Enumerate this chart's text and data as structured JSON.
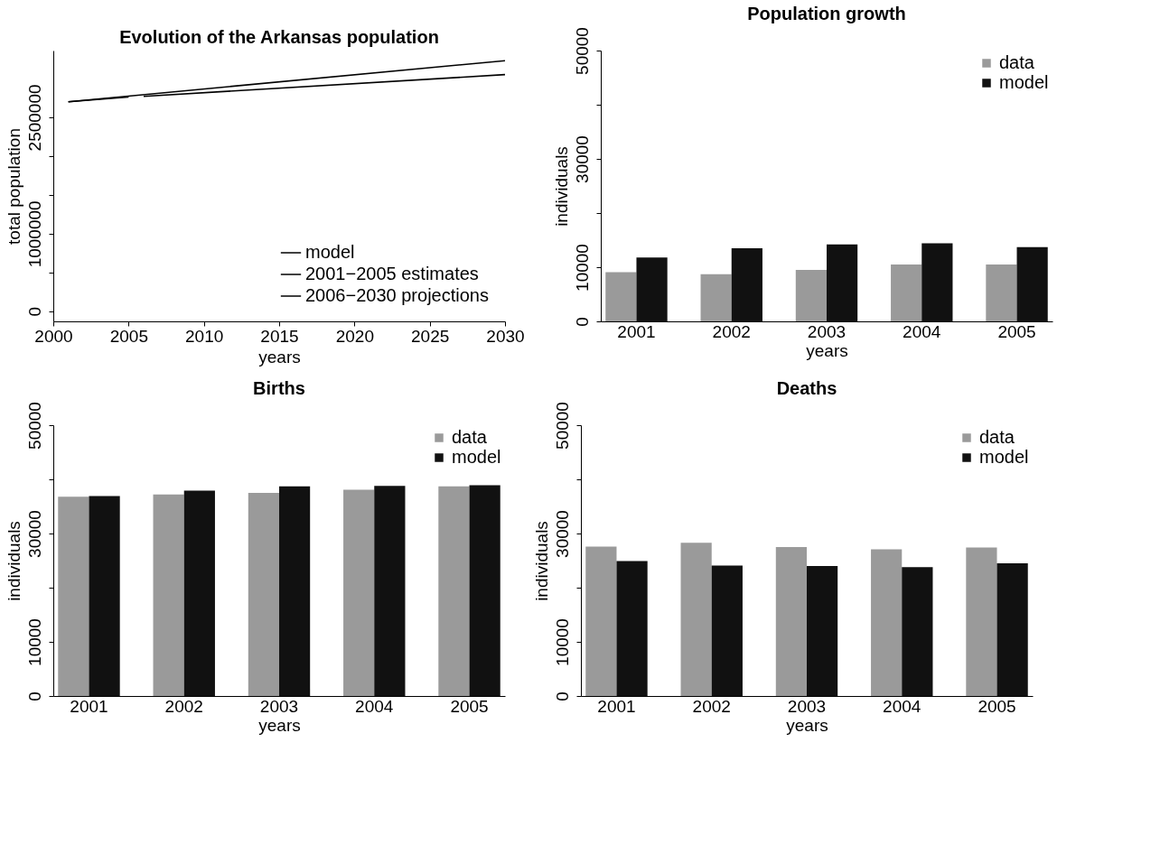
{
  "chart_data": [
    {
      "type": "line",
      "title": "Evolution of the Arkansas population",
      "xlabel": "years",
      "ylabel": "total population",
      "xlim": [
        2000,
        2030
      ],
      "xticks": [
        2000,
        2005,
        2010,
        2015,
        2020,
        2025,
        2030
      ],
      "ylim": [
        -130000,
        3360000
      ],
      "yticks": [
        0,
        {
          "value": 500000,
          "label": null
        },
        1000000,
        {
          "value": 1500000,
          "label": null
        },
        {
          "value": 2000000,
          "label": null
        },
        2500000
      ],
      "grid": false,
      "legend": "bottom right",
      "series": [
        {
          "name": "model",
          "color": "#000000",
          "x": [
            2001,
            2030
          ],
          "values": [
            2700000,
            3230000
          ]
        },
        {
          "name": "2001−2005 estimates",
          "color": "#000000",
          "x": [
            2001,
            2005
          ],
          "values": [
            2700000,
            2760000
          ]
        },
        {
          "name": "2006−2030 projections",
          "color": "#000000",
          "x": [
            2006,
            2030
          ],
          "values": [
            2770000,
            3050000
          ]
        }
      ]
    },
    {
      "type": "bar",
      "title": "Population growth",
      "xlabel": "years",
      "ylabel": "individuals",
      "categories": [
        "2001",
        "2002",
        "2003",
        "2004",
        "2005"
      ],
      "ylim": [
        0,
        50000
      ],
      "yticks": [
        0,
        10000,
        {
          "value": 20000,
          "label": null
        },
        30000,
        {
          "value": 40000,
          "label": null
        },
        50000
      ],
      "grid": false,
      "legend": "top right",
      "series": [
        {
          "name": "data",
          "color": "#9a9a9a",
          "values": [
            9100,
            8700,
            9500,
            10500,
            10500
          ]
        },
        {
          "name": "model",
          "color": "#111111",
          "values": [
            11800,
            13500,
            14200,
            14400,
            13700
          ]
        }
      ]
    },
    {
      "type": "bar",
      "title": "Births",
      "xlabel": "years",
      "ylabel": "individuals",
      "categories": [
        "2001",
        "2002",
        "2003",
        "2004",
        "2005"
      ],
      "ylim": [
        0,
        50000
      ],
      "yticks": [
        0,
        10000,
        {
          "value": 20000,
          "label": null
        },
        30000,
        {
          "value": 40000,
          "label": null
        },
        50000
      ],
      "grid": false,
      "legend": "top right",
      "series": [
        {
          "name": "data",
          "color": "#9a9a9a",
          "values": [
            36800,
            37200,
            37500,
            38100,
            38700
          ]
        },
        {
          "name": "model",
          "color": "#111111",
          "values": [
            36900,
            37900,
            38700,
            38800,
            38900
          ]
        }
      ]
    },
    {
      "type": "bar",
      "title": "Deaths",
      "xlabel": "years",
      "ylabel": "individuals",
      "categories": [
        "2001",
        "2002",
        "2003",
        "2004",
        "2005"
      ],
      "ylim": [
        0,
        50000
      ],
      "yticks": [
        0,
        10000,
        {
          "value": 20000,
          "label": null
        },
        30000,
        {
          "value": 40000,
          "label": null
        },
        50000
      ],
      "grid": false,
      "legend": "top right",
      "series": [
        {
          "name": "data",
          "color": "#9a9a9a",
          "values": [
            27600,
            28300,
            27500,
            27100,
            27400
          ]
        },
        {
          "name": "model",
          "color": "#111111",
          "values": [
            24900,
            24100,
            24000,
            23800,
            24500
          ]
        }
      ]
    }
  ]
}
